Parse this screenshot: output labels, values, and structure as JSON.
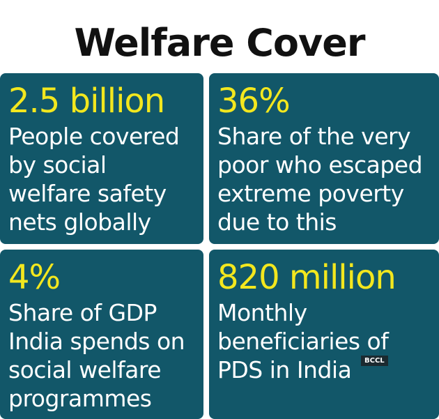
{
  "title": "Welfare Cover",
  "panels": [
    {
      "stat": "2.5 billion",
      "lines": [
        "People covered",
        "by social",
        "welfare safety",
        "nets globally"
      ]
    },
    {
      "stat": "36%",
      "lines": [
        "Share of the very",
        "poor who escaped",
        "extreme poverty",
        "due to this"
      ]
    },
    {
      "stat": "4%",
      "lines": [
        "Share of GDP",
        "India spends on",
        "social welfare",
        "programmes"
      ]
    },
    {
      "stat": "820 million",
      "lines": [
        "Monthly",
        "beneficiaries of",
        "PDS in India"
      ]
    }
  ],
  "watermark": "BCCL"
}
